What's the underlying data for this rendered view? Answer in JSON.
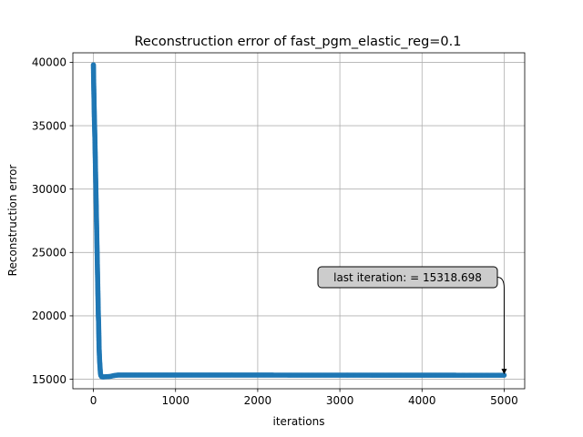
{
  "chart_data": {
    "type": "line",
    "title": "Reconstruction error of fast_pgm_elastic_reg=0.1",
    "xlabel": "iterations",
    "ylabel": "Reconstruction error",
    "xlim": [
      -250,
      5250
    ],
    "ylim": [
      14250,
      40750
    ],
    "grid": true,
    "marker": "circle",
    "series_color": "#1f77b4",
    "x_ticks": [
      0,
      1000,
      2000,
      3000,
      4000,
      5000
    ],
    "x_tick_labels": [
      "0",
      "1000",
      "2000",
      "3000",
      "4000",
      "5000"
    ],
    "y_ticks": [
      15000,
      20000,
      25000,
      30000,
      35000,
      40000
    ],
    "y_tick_labels": [
      "15000",
      "20000",
      "25000",
      "30000",
      "35000",
      "40000"
    ],
    "series": [
      {
        "x": [
          0,
          3,
          6,
          9,
          12,
          15,
          18,
          21,
          24,
          27,
          30,
          33,
          36,
          39,
          42,
          45,
          48,
          51,
          54,
          57,
          60,
          63,
          66,
          69,
          72,
          75,
          80,
          85,
          90,
          100,
          120,
          150,
          200,
          260,
          300,
          400,
          600,
          800,
          1000,
          1500,
          2000,
          2500,
          3000,
          3500,
          4000,
          4500,
          5000
        ],
        "y": [
          39800,
          38500,
          37500,
          36500,
          35500,
          34800,
          34000,
          33000,
          32000,
          31000,
          30000,
          29000,
          28000,
          27000,
          26000,
          25000,
          24000,
          23000,
          22000,
          21000,
          20000,
          19500,
          18500,
          17500,
          17000,
          16500,
          16000,
          15500,
          15300,
          15200,
          15180,
          15200,
          15220,
          15300,
          15330,
          15330,
          15330,
          15330,
          15330,
          15330,
          15330,
          15325,
          15325,
          15320,
          15320,
          15319,
          15318.698
        ]
      }
    ],
    "annotation": {
      "text": "last iteration: = 15318.698",
      "x": 5000,
      "y": 15318.698
    }
  }
}
